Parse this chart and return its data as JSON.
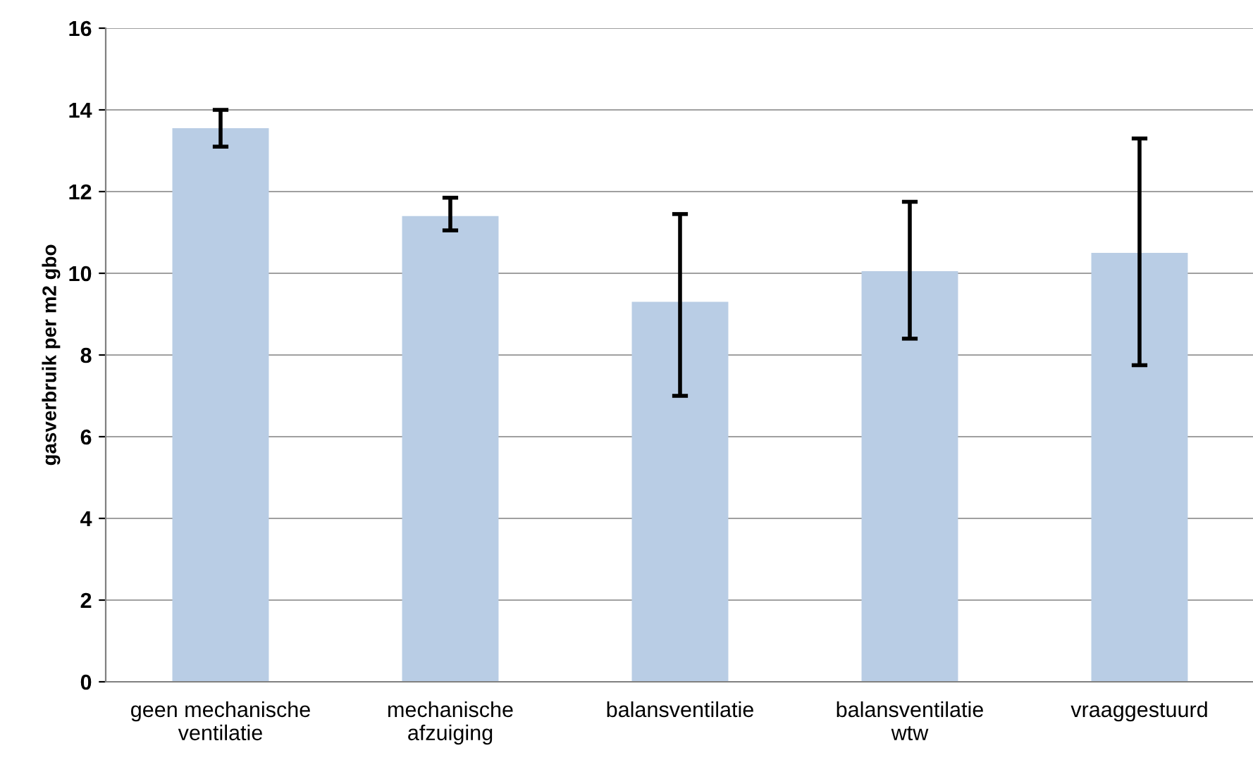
{
  "chart_data": {
    "type": "bar",
    "ylabel": "gasverbruik per m2 gbo",
    "categories": [
      "geen mechanische\nventilatie",
      "mechanische\nafzuiging",
      "balansventilatie",
      "balansventilatie\nwtw",
      "vraaggestuurd"
    ],
    "values": [
      13.55,
      11.4,
      9.3,
      10.05,
      10.5
    ],
    "errors": [
      [
        13.1,
        14.0
      ],
      [
        11.05,
        11.85
      ],
      [
        7.0,
        11.45
      ],
      [
        8.4,
        11.75
      ],
      [
        7.75,
        13.3
      ]
    ],
    "color": "#b9cde5",
    "ylim": [
      0,
      16
    ],
    "yticks": [
      0,
      2,
      4,
      6,
      8,
      10,
      12,
      14,
      16
    ],
    "grid": "y",
    "legend": false
  }
}
